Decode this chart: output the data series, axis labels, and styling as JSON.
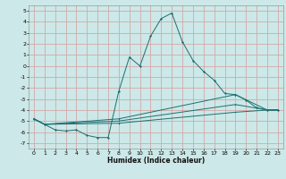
{
  "xlabel": "Humidex (Indice chaleur)",
  "bg_color": "#cce8e8",
  "grid_color": "#d4a8a8",
  "line_color": "#1a7070",
  "xlim": [
    -0.5,
    23.5
  ],
  "ylim": [
    -7.5,
    5.5
  ],
  "xticks": [
    0,
    1,
    2,
    3,
    4,
    5,
    6,
    7,
    8,
    9,
    10,
    11,
    12,
    13,
    14,
    15,
    16,
    17,
    18,
    19,
    20,
    21,
    22,
    23
  ],
  "yticks": [
    -7,
    -6,
    -5,
    -4,
    -3,
    -2,
    -1,
    0,
    1,
    2,
    3,
    4,
    5
  ],
  "series": [
    [
      0,
      -4.8
    ],
    [
      1,
      -5.3
    ],
    [
      2,
      -5.8
    ],
    [
      3,
      -5.9
    ],
    [
      4,
      -5.8
    ],
    [
      5,
      -6.3
    ],
    [
      6,
      -6.5
    ],
    [
      7,
      -6.5
    ],
    [
      8,
      -2.3
    ],
    [
      9,
      0.8
    ],
    [
      10,
      0.0
    ],
    [
      11,
      2.7
    ],
    [
      12,
      4.3
    ],
    [
      13,
      4.8
    ],
    [
      14,
      2.2
    ],
    [
      15,
      0.5
    ],
    [
      16,
      -0.5
    ],
    [
      17,
      -1.3
    ],
    [
      18,
      -2.5
    ],
    [
      19,
      -2.6
    ],
    [
      20,
      -3.1
    ],
    [
      21,
      -3.8
    ],
    [
      22,
      -4.0
    ],
    [
      23,
      -4.0
    ]
  ],
  "line2": [
    [
      0,
      -4.8
    ],
    [
      1,
      -5.3
    ],
    [
      8,
      -4.8
    ],
    [
      19,
      -2.6
    ],
    [
      22,
      -4.0
    ],
    [
      23,
      -4.0
    ]
  ],
  "line3": [
    [
      0,
      -4.8
    ],
    [
      1,
      -5.3
    ],
    [
      8,
      -5.0
    ],
    [
      19,
      -3.5
    ],
    [
      22,
      -4.0
    ],
    [
      23,
      -4.0
    ]
  ],
  "line4": [
    [
      0,
      -4.8
    ],
    [
      1,
      -5.3
    ],
    [
      8,
      -5.2
    ],
    [
      19,
      -4.2
    ],
    [
      22,
      -4.0
    ],
    [
      23,
      -4.0
    ]
  ]
}
